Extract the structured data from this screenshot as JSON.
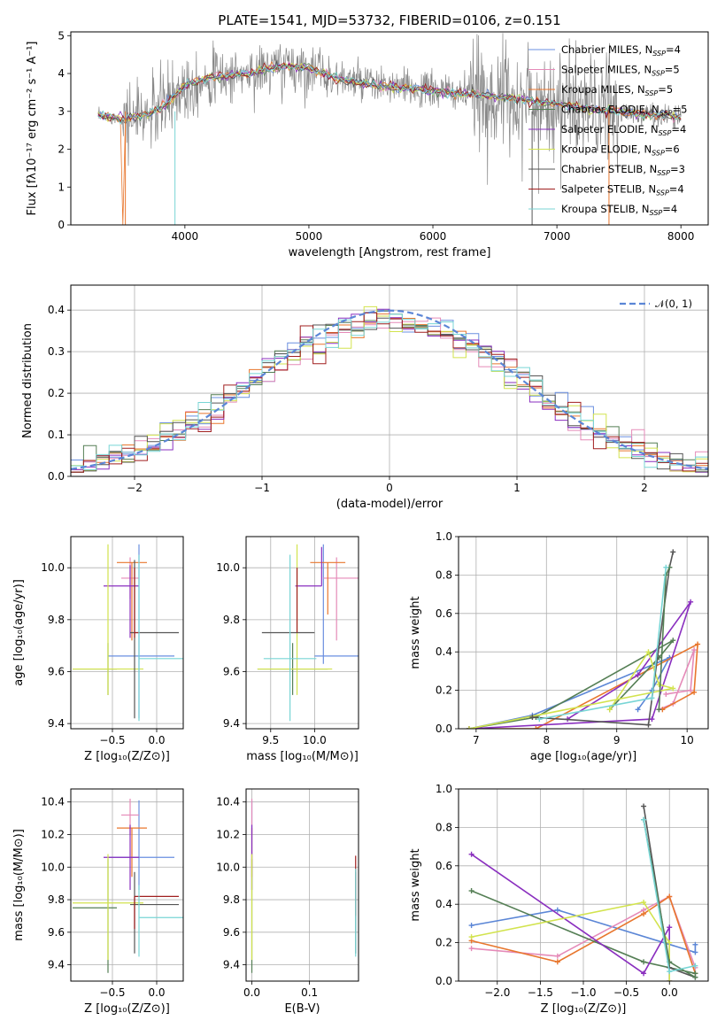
{
  "colors": [
    "#6a8fe0",
    "#e58ab8",
    "#e8762d",
    "#557f55",
    "#8a2fbf",
    "#d2e34e",
    "#555555",
    "#a01f1f",
    "#78d5d5"
  ],
  "chart_data": [
    {
      "id": "spectrum",
      "type": "line",
      "title": "PLATE=1541, MJD=53732, FIBERID=0106, z=0.151",
      "xlabel": "wavelength [Angstrom, rest frame]",
      "ylabel": "Flux [fλ10⁻¹⁷ erg cm⁻² s⁻¹ A⁻¹]",
      "xlim": [
        3080,
        8220
      ],
      "ylim": [
        0,
        5.1
      ],
      "xticks": [
        4000,
        5000,
        6000,
        7000,
        8000
      ],
      "yticks": [
        0,
        1,
        2,
        3,
        4,
        5
      ],
      "grid": false,
      "legend_position": "upper-right",
      "series": [
        {
          "name": "Chabrier MILES, N",
          "sub": "SSP",
          "suffix": "=4"
        },
        {
          "name": "Salpeter MILES, N",
          "sub": "SSP",
          "suffix": "=5"
        },
        {
          "name": "Kroupa MILES, N",
          "sub": "SSP",
          "suffix": "=5"
        },
        {
          "name": "Chabrier ELODIE, N",
          "sub": "SSP",
          "suffix": "=5"
        },
        {
          "name": "Salpeter ELODIE, N",
          "sub": "SSP",
          "suffix": "=4"
        },
        {
          "name": "Kroupa ELODIE, N",
          "sub": "SSP",
          "suffix": "=6"
        },
        {
          "name": "Chabrier STELIB, N",
          "sub": "SSP",
          "suffix": "=3"
        },
        {
          "name": "Salpeter STELIB, N",
          "sub": "SSP",
          "suffix": "=4"
        },
        {
          "name": "Kroupa STELIB, N",
          "sub": "SSP",
          "suffix": "=4"
        }
      ],
      "continuum": [
        [
          3300,
          2.9
        ],
        [
          3500,
          2.8
        ],
        [
          3700,
          2.9
        ],
        [
          3850,
          3.2
        ],
        [
          4000,
          3.7
        ],
        [
          4200,
          3.9
        ],
        [
          4500,
          4.0
        ],
        [
          4800,
          4.2
        ],
        [
          5000,
          4.15
        ],
        [
          5200,
          3.9
        ],
        [
          5500,
          3.7
        ],
        [
          5800,
          3.6
        ],
        [
          6000,
          3.55
        ],
        [
          6300,
          3.45
        ],
        [
          6600,
          3.35
        ],
        [
          7000,
          3.2
        ],
        [
          7300,
          3.05
        ],
        [
          7600,
          2.95
        ],
        [
          8000,
          2.85
        ],
        [
          8200,
          2.8
        ]
      ]
    },
    {
      "id": "histogram",
      "type": "bar",
      "xlabel": "(data-model)/error",
      "ylabel": "Normed distribution",
      "xlim": [
        -2.5,
        2.5
      ],
      "ylim": [
        0,
        0.46
      ],
      "xticks": [
        -2,
        -1,
        0,
        1,
        2
      ],
      "yticks": [
        0.0,
        0.1,
        0.2,
        0.3,
        0.4
      ],
      "grid": true,
      "legend_label": "𝒩(0, 1)",
      "legend_position": "upper-right",
      "bin_width": 0.1
    },
    {
      "id": "age_vs_Z",
      "type": "scatter",
      "xlabel": "Z [log₁₀(Z/Z⊙)]",
      "ylabel": "age  [log₁₀(age/yr)]",
      "xlim": [
        -0.97,
        0.3
      ],
      "ylim": [
        9.38,
        10.12
      ],
      "xticks": [
        -0.5,
        0.0
      ],
      "yticks": [
        9.4,
        9.6,
        9.8,
        10.0
      ],
      "grid": true,
      "points": [
        {
          "x": -0.2,
          "y": 9.66,
          "xerr": [
            0.35,
            0.4
          ],
          "yerr": [
            0.24,
            0.43
          ]
        },
        {
          "x": -0.3,
          "y": 9.96,
          "xerr": [
            0.1,
            0.1
          ],
          "yerr": [
            0.08,
            0.08
          ]
        },
        {
          "x": -0.28,
          "y": 10.02,
          "xerr": [
            0.17,
            0.17
          ],
          "yerr": [
            0.3,
            0.0
          ]
        },
        {
          "x": -0.55,
          "y": 9.61,
          "xerr": [
            0.4,
            0.1
          ],
          "yerr": [
            0.1,
            0.1
          ]
        },
        {
          "x": -0.3,
          "y": 9.93,
          "xerr": [
            0.3,
            0.1
          ],
          "yerr": [
            0.2,
            0.08
          ]
        },
        {
          "x": -0.55,
          "y": 9.61,
          "xerr": [
            0.4,
            0.4
          ],
          "yerr": [
            0.1,
            0.48
          ]
        },
        {
          "x": -0.25,
          "y": 9.75,
          "xerr": [
            0.05,
            0.5
          ],
          "yerr": [
            0.33,
            0.28
          ]
        },
        {
          "x": -0.25,
          "y": 9.75,
          "xerr": [
            0.0,
            0.05
          ],
          "yerr": [
            0.02,
            0.25
          ]
        },
        {
          "x": -0.2,
          "y": 9.65,
          "xerr": [
            0.0,
            0.5
          ],
          "yerr": [
            0.24,
            0.4
          ]
        }
      ]
    },
    {
      "id": "age_vs_mass",
      "type": "scatter",
      "xlabel": "mass [log₁₀(M/M⊙)]",
      "ylabel": "",
      "xlim": [
        9.22,
        10.5
      ],
      "ylim": [
        9.38,
        10.12
      ],
      "xticks": [
        9.5,
        10.0
      ],
      "yticks": [
        9.4,
        9.6,
        9.8,
        10.0
      ],
      "grid": true,
      "points": [
        {
          "x": 10.1,
          "y": 9.66,
          "xerr": [
            0.1,
            0.4
          ],
          "yerr": [
            0.03,
            0.43
          ]
        },
        {
          "x": 10.25,
          "y": 9.96,
          "xerr": [
            0.15,
            0.25
          ],
          "yerr": [
            0.24,
            0.08
          ]
        },
        {
          "x": 10.15,
          "y": 10.02,
          "xerr": [
            0.2,
            0.2
          ],
          "yerr": [
            0.2,
            0.0
          ]
        },
        {
          "x": 9.75,
          "y": 9.61,
          "xerr": [
            0.4,
            0.4
          ],
          "yerr": [
            0.1,
            0.1
          ]
        },
        {
          "x": 10.08,
          "y": 9.93,
          "xerr": [
            0.3,
            0.0
          ],
          "yerr": [
            0.0,
            0.15
          ]
        },
        {
          "x": 9.8,
          "y": 9.61,
          "xerr": [
            0.45,
            0.4
          ],
          "yerr": [
            0.1,
            0.48
          ]
        },
        {
          "x": 9.7,
          "y": 9.75,
          "xerr": [
            0.3,
            0.3
          ],
          "yerr": [
            0.0,
            0.0
          ]
        },
        {
          "x": 9.8,
          "y": 9.75,
          "xerr": [
            0.0,
            0.0
          ],
          "yerr": [
            0.0,
            0.25
          ]
        },
        {
          "x": 9.72,
          "y": 9.65,
          "xerr": [
            0.3,
            0.3
          ],
          "yerr": [
            0.24,
            0.4
          ]
        }
      ]
    },
    {
      "id": "massweight_vs_age",
      "type": "line",
      "xlabel": "age  [log₁₀(age/yr)]",
      "ylabel": "mass weight",
      "xlim": [
        6.75,
        10.3
      ],
      "ylim": [
        0,
        1
      ],
      "xticks": [
        7,
        8,
        9,
        10
      ],
      "yticks": [
        0.0,
        0.2,
        0.4,
        0.6,
        0.8,
        1.0
      ],
      "grid": true,
      "lines": [
        [
          [
            9.3,
            0.1
          ],
          [
            9.5,
            0.2
          ],
          [
            9.75,
            0.37
          ],
          [
            7.8,
            0.07
          ],
          [
            6.9,
            0.0
          ]
        ],
        [
          [
            9.6,
            0.1
          ],
          [
            9.8,
            0.13
          ],
          [
            10.1,
            0.41
          ],
          [
            10.05,
            0.2
          ],
          [
            9.7,
            0.18
          ]
        ],
        [
          [
            9.65,
            0.1
          ],
          [
            10.1,
            0.19
          ],
          [
            10.15,
            0.44
          ],
          [
            7.85,
            0.0
          ],
          [
            6.9,
            0.0
          ]
        ],
        [
          [
            8.9,
            0.1
          ],
          [
            9.6,
            0.37
          ],
          [
            9.8,
            0.46
          ],
          [
            7.85,
            0.06
          ],
          [
            6.9,
            0.0
          ]
        ],
        [
          [
            8.3,
            0.05
          ],
          [
            9.3,
            0.28
          ],
          [
            10.05,
            0.66
          ],
          [
            9.5,
            0.05
          ],
          [
            6.9,
            0.0
          ]
        ],
        [
          [
            8.9,
            0.1
          ],
          [
            9.45,
            0.4
          ],
          [
            9.6,
            0.23
          ],
          [
            9.8,
            0.21
          ],
          [
            6.9,
            0.0
          ]
        ],
        [
          [
            7.8,
            0.06
          ],
          [
            9.45,
            0.02
          ],
          [
            9.75,
            0.84
          ],
          [
            9.8,
            0.92
          ]
        ],
        [
          [
            9.6,
            0.1
          ],
          [
            9.7,
            0.8
          ],
          [
            9.75,
            0.84
          ]
        ],
        [
          [
            7.9,
            0.05
          ],
          [
            9.5,
            0.16
          ],
          [
            9.7,
            0.84
          ]
        ]
      ]
    },
    {
      "id": "mass_vs_Z",
      "type": "scatter",
      "xlabel": "Z [log₁₀(Z/Z⊙)]",
      "ylabel": "mass [log₁₀(M/M⊙)]",
      "xlim": [
        -0.97,
        0.3
      ],
      "ylim": [
        9.3,
        10.48
      ],
      "xticks": [
        -0.5,
        0.0
      ],
      "yticks": [
        9.4,
        9.6,
        9.8,
        10.0,
        10.2,
        10.4
      ],
      "grid": true,
      "points": [
        {
          "x": -0.2,
          "y": 10.06,
          "xerr": [
            0.35,
            0.4
          ],
          "yerr": [
            0.2,
            0.35
          ]
        },
        {
          "x": -0.3,
          "y": 10.32,
          "xerr": [
            0.1,
            0.1
          ],
          "yerr": [
            0.12,
            0.1
          ]
        },
        {
          "x": -0.28,
          "y": 10.24,
          "xerr": [
            0.17,
            0.17
          ],
          "yerr": [
            0.3,
            0.0
          ]
        },
        {
          "x": -0.55,
          "y": 9.75,
          "xerr": [
            0.4,
            0.1
          ],
          "yerr": [
            0.4,
            0.3
          ]
        },
        {
          "x": -0.3,
          "y": 10.06,
          "xerr": [
            0.3,
            0.1
          ],
          "yerr": [
            0.2,
            0.2
          ]
        },
        {
          "x": -0.55,
          "y": 9.78,
          "xerr": [
            0.4,
            0.4
          ],
          "yerr": [
            0.35,
            0.3
          ]
        },
        {
          "x": -0.25,
          "y": 9.77,
          "xerr": [
            0.05,
            0.5
          ],
          "yerr": [
            0.3,
            0.2
          ]
        },
        {
          "x": -0.25,
          "y": 9.82,
          "xerr": [
            0.0,
            0.5
          ],
          "yerr": [
            0.2,
            0.0
          ]
        },
        {
          "x": -0.2,
          "y": 9.69,
          "xerr": [
            0.0,
            0.5
          ],
          "yerr": [
            0.24,
            0.2
          ]
        }
      ]
    },
    {
      "id": "mass_vs_EBV",
      "type": "scatter",
      "xlabel": "E(B-V)",
      "ylabel": "",
      "xlim": [
        -0.01,
        0.185
      ],
      "ylim": [
        9.3,
        10.48
      ],
      "xticks": [
        0.0,
        0.1
      ],
      "yticks": [
        9.4,
        9.6,
        9.8,
        10.0,
        10.2,
        10.4
      ],
      "grid": true,
      "points": [
        {
          "x": 0.0,
          "y": 10.06,
          "xerr": [
            0,
            0
          ],
          "yerr": [
            0.2,
            0.35
          ]
        },
        {
          "x": 0.0,
          "y": 10.32,
          "xerr": [
            0,
            0
          ],
          "yerr": [
            0.12,
            0.1
          ]
        },
        {
          "x": 0.0,
          "y": 10.24,
          "xerr": [
            0,
            0
          ],
          "yerr": [
            0.3,
            0.0
          ]
        },
        {
          "x": 0.0,
          "y": 9.75,
          "xerr": [
            0,
            0
          ],
          "yerr": [
            0.4,
            0.3
          ]
        },
        {
          "x": 0.0,
          "y": 10.06,
          "xerr": [
            0,
            0
          ],
          "yerr": [
            0.2,
            0.2
          ]
        },
        {
          "x": 0.0,
          "y": 9.78,
          "xerr": [
            0,
            0
          ],
          "yerr": [
            0.35,
            0.3
          ]
        },
        {
          "x": 0.18,
          "y": 9.77,
          "xerr": [
            0,
            0
          ],
          "yerr": [
            0.3,
            0.2
          ]
        },
        {
          "x": 0.18,
          "y": 9.9,
          "xerr": [
            0,
            0
          ],
          "yerr": [
            0.2,
            0.17
          ]
        },
        {
          "x": 0.18,
          "y": 9.69,
          "xerr": [
            0,
            0
          ],
          "yerr": [
            0.24,
            0.3
          ]
        }
      ]
    },
    {
      "id": "massweight_vs_Z",
      "type": "line",
      "xlabel": "Z [log₁₀(Z/Z⊙)]",
      "ylabel": "mass weight",
      "xlim": [
        -2.45,
        0.45
      ],
      "ylim": [
        0,
        1
      ],
      "xticks": [
        -2.0,
        -1.5,
        -1.0,
        -0.5,
        0.0
      ],
      "yticks": [
        0.0,
        0.2,
        0.4,
        0.6,
        0.8,
        1.0
      ],
      "grid": true,
      "lines": [
        [
          [
            -2.3,
            0.29
          ],
          [
            -1.3,
            0.37
          ],
          [
            0.3,
            0.15
          ],
          [
            0.3,
            0.19
          ]
        ],
        [
          [
            -2.3,
            0.17
          ],
          [
            -1.3,
            0.13
          ],
          [
            -0.3,
            0.37
          ],
          [
            0.0,
            0.44
          ],
          [
            0.3,
            0.07
          ]
        ],
        [
          [
            -2.3,
            0.21
          ],
          [
            -1.3,
            0.1
          ],
          [
            -0.3,
            0.35
          ],
          [
            0.0,
            0.44
          ],
          [
            0.3,
            0.04
          ]
        ],
        [
          [
            -2.3,
            0.47
          ],
          [
            -0.3,
            0.1
          ],
          [
            0.3,
            0.04
          ]
        ],
        [
          [
            -2.3,
            0.66
          ],
          [
            -0.3,
            0.04
          ],
          [
            0.0,
            0.28
          ],
          [
            0.0,
            0.0
          ]
        ],
        [
          [
            -2.3,
            0.23
          ],
          [
            -0.3,
            0.41
          ],
          [
            0.0,
            0.2
          ],
          [
            0.0,
            0.0
          ]
        ],
        [
          [
            -0.3,
            0.91
          ],
          [
            0.0,
            0.07
          ],
          [
            0.3,
            0.02
          ]
        ],
        [
          [
            -0.3,
            0.84
          ],
          [
            0.0,
            0.1
          ],
          [
            0.3,
            0.02
          ]
        ],
        [
          [
            -0.3,
            0.84
          ],
          [
            0.0,
            0.05
          ],
          [
            0.3,
            0.08
          ]
        ]
      ]
    }
  ]
}
